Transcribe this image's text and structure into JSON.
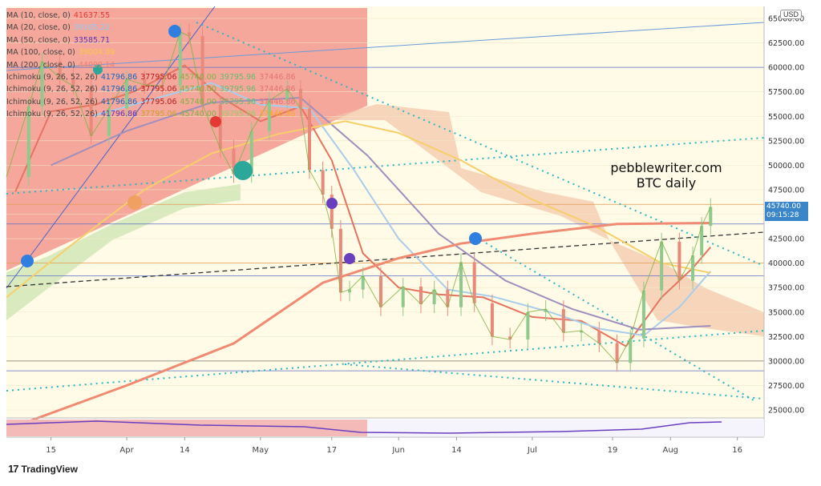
{
  "legend": [
    {
      "name": "MA (10, close, 0)",
      "values": [
        {
          "text": "41637.55",
          "color": "#e53935"
        }
      ]
    },
    {
      "name": "MA (20, close, 0)",
      "values": [
        {
          "text": "39165.22",
          "color": "#90caf9"
        }
      ]
    },
    {
      "name": "MA (50, close, 0)",
      "values": [
        {
          "text": "33585.71",
          "color": "#5e35b1"
        }
      ]
    },
    {
      "name": "MA (100, close, 0)",
      "values": [
        {
          "text": "39004.09",
          "color": "#f9c846"
        }
      ]
    },
    {
      "name": "MA (200, close, 0)",
      "values": [
        {
          "text": "44099.14",
          "color": "#f0806a"
        }
      ]
    },
    {
      "name": "Ichimoku (9, 26, 52, 26)",
      "values": [
        {
          "text": "41796.86",
          "color": "#1565c0"
        },
        {
          "text": "37795.06",
          "color": "#b71c1c"
        },
        {
          "text": "45740.00",
          "color": "#7cb342"
        },
        {
          "text": "39795.96",
          "color": "#66bb6a"
        },
        {
          "text": "37446.86",
          "color": "#e57373"
        }
      ]
    },
    {
      "name": "Ichimoku (9, 26, 52, 26)",
      "values": [
        {
          "text": "41796.86",
          "color": "#1565c0"
        },
        {
          "text": "37795.06",
          "color": "#b71c1c"
        },
        {
          "text": "45740.00",
          "color": "#7cb342"
        },
        {
          "text": "39795.96",
          "color": "#66bb6a"
        },
        {
          "text": "37446.86",
          "color": "#e57373"
        }
      ]
    },
    {
      "name": "Ichimoku (9, 26, 52, 26)",
      "values": [
        {
          "text": "41796.86",
          "color": "#1565c0"
        },
        {
          "text": "37795.06",
          "color": "#b71c1c"
        },
        {
          "text": "45740.00",
          "color": "#7cb342"
        },
        {
          "text": "39795.96",
          "color": "#66bb6a"
        },
        {
          "text": "37446.86",
          "color": "#e57373"
        }
      ]
    },
    {
      "name": "Ichimoku (9, 26, 52, 26)",
      "values": [
        {
          "text": "41796.86",
          "color": "#5e35b1"
        },
        {
          "text": "37795.06",
          "color": "#c9a227"
        },
        {
          "text": "45740.00",
          "color": "#7cb342"
        },
        {
          "text": "39795.96",
          "color": "#9ccc65"
        },
        {
          "text": "37446.86",
          "color": "#f9a825"
        }
      ]
    }
  ],
  "annotation": {
    "line1": "pebblewriter.com",
    "line2": "BTC daily"
  },
  "currency": "USD",
  "last_price": {
    "value": "45740.00",
    "time": "09:15:28"
  },
  "brand": {
    "logo": "17",
    "name": "TradingView"
  },
  "chart_data": {
    "type": "line",
    "title": "",
    "ylim": [
      24000,
      66000
    ],
    "y_ticks": [
      25000,
      27500,
      30000,
      32500,
      35000,
      37500,
      40000,
      42500,
      45000,
      47500,
      50000,
      52500,
      55000,
      57500,
      60000,
      62500,
      65000
    ],
    "y_tick_labels": [
      "25000.00",
      "27500.00",
      "30000.00",
      "32500.00",
      "35000.00",
      "37500.00",
      "40000.00",
      "42500.00",
      "45000.00",
      "47500.00",
      "50000.00",
      "52500.00",
      "55000.00",
      "57500.00",
      "60000.00",
      "62500.00",
      "65000.00"
    ],
    "x_ticks": [
      "15",
      "Apr",
      "14",
      "May",
      "17",
      "Jun",
      "14",
      "Jul",
      "19",
      "Aug",
      "16"
    ],
    "x_range": [
      "2021-03-05",
      "2021-08-22"
    ],
    "x_tick_dates": [
      "2021-03-15",
      "2021-04-01",
      "2021-04-14",
      "2021-05-01",
      "2021-05-17",
      "2021-06-01",
      "2021-06-14",
      "2021-07-01",
      "2021-07-19",
      "2021-08-01",
      "2021-08-16"
    ],
    "close_series": [
      [
        "2021-03-05",
        48800
      ],
      [
        "2021-03-10",
        56000
      ],
      [
        "2021-03-13",
        60600
      ],
      [
        "2021-03-17",
        58900
      ],
      [
        "2021-03-20",
        58100
      ],
      [
        "2021-03-24",
        53000
      ],
      [
        "2021-03-28",
        55800
      ],
      [
        "2021-04-01",
        58800
      ],
      [
        "2021-04-05",
        58200
      ],
      [
        "2021-04-09",
        58100
      ],
      [
        "2021-04-13",
        63600
      ],
      [
        "2021-04-15",
        63200
      ],
      [
        "2021-04-18",
        56200
      ],
      [
        "2021-04-22",
        51700
      ],
      [
        "2021-04-25",
        49100
      ],
      [
        "2021-04-29",
        53500
      ],
      [
        "2021-05-03",
        56600
      ],
      [
        "2021-05-07",
        57800
      ],
      [
        "2021-05-10",
        55800
      ],
      [
        "2021-05-12",
        49500
      ],
      [
        "2021-05-15",
        47000
      ],
      [
        "2021-05-17",
        43500
      ],
      [
        "2021-05-19",
        37000
      ],
      [
        "2021-05-21",
        37300
      ],
      [
        "2021-05-24",
        38700
      ],
      [
        "2021-05-28",
        35500
      ],
      [
        "2021-06-02",
        37600
      ],
      [
        "2021-06-06",
        35800
      ],
      [
        "2021-06-09",
        37300
      ],
      [
        "2021-06-12",
        35500
      ],
      [
        "2021-06-15",
        40100
      ],
      [
        "2021-06-18",
        35900
      ],
      [
        "2021-06-22",
        32500
      ],
      [
        "2021-06-26",
        32200
      ],
      [
        "2021-06-30",
        35000
      ],
      [
        "2021-07-04",
        35300
      ],
      [
        "2021-07-08",
        32900
      ],
      [
        "2021-07-12",
        33100
      ],
      [
        "2021-07-16",
        31800
      ],
      [
        "2021-07-20",
        29800
      ],
      [
        "2021-07-23",
        32300
      ],
      [
        "2021-07-26",
        37200
      ],
      [
        "2021-07-30",
        42200
      ],
      [
        "2021-08-03",
        38200
      ],
      [
        "2021-08-06",
        40800
      ],
      [
        "2021-08-08",
        43800
      ],
      [
        "2021-08-10",
        45740
      ]
    ],
    "series": [
      {
        "name": "MA (10, close, 0)",
        "color": "#e57360",
        "points": [
          [
            "2021-03-07",
            47300
          ],
          [
            "2021-03-15",
            55500
          ],
          [
            "2021-03-25",
            56200
          ],
          [
            "2021-04-03",
            57600
          ],
          [
            "2021-04-14",
            60200
          ],
          [
            "2021-04-22",
            57000
          ],
          [
            "2021-05-01",
            54500
          ],
          [
            "2021-05-10",
            56000
          ],
          [
            "2021-05-17",
            50500
          ],
          [
            "2021-05-24",
            41000
          ],
          [
            "2021-06-01",
            37500
          ],
          [
            "2021-06-10",
            36800
          ],
          [
            "2021-06-20",
            36500
          ],
          [
            "2021-07-01",
            34500
          ],
          [
            "2021-07-12",
            34100
          ],
          [
            "2021-07-22",
            31500
          ],
          [
            "2021-07-30",
            36500
          ],
          [
            "2021-08-06",
            39500
          ],
          [
            "2021-08-10",
            41637
          ]
        ]
      },
      {
        "name": "MA (20, close, 0)",
        "color": "#a9cdea",
        "points": [
          [
            "2021-03-24",
            55000
          ],
          [
            "2021-04-05",
            56500
          ],
          [
            "2021-04-20",
            58400
          ],
          [
            "2021-05-01",
            56200
          ],
          [
            "2021-05-12",
            55800
          ],
          [
            "2021-05-22",
            49500
          ],
          [
            "2021-06-01",
            42500
          ],
          [
            "2021-06-12",
            37300
          ],
          [
            "2021-06-22",
            36600
          ],
          [
            "2021-07-05",
            35000
          ],
          [
            "2021-07-16",
            33300
          ],
          [
            "2021-07-26",
            32600
          ],
          [
            "2021-08-03",
            35500
          ],
          [
            "2021-08-10",
            39165
          ]
        ]
      },
      {
        "name": "MA (50, close, 0)",
        "color": "#9e8fbe",
        "points": [
          [
            "2021-03-15",
            50000
          ],
          [
            "2021-04-01",
            53500
          ],
          [
            "2021-04-20",
            56400
          ],
          [
            "2021-05-10",
            56900
          ],
          [
            "2021-05-25",
            51000
          ],
          [
            "2021-06-10",
            43000
          ],
          [
            "2021-06-25",
            38200
          ],
          [
            "2021-07-10",
            35300
          ],
          [
            "2021-07-25",
            33200
          ],
          [
            "2021-08-10",
            33585
          ]
        ]
      },
      {
        "name": "MA (100, close, 0)",
        "color": "#f6cf6a",
        "points": [
          [
            "2021-03-05",
            36500
          ],
          [
            "2021-03-20",
            42000
          ],
          [
            "2021-04-05",
            47500
          ],
          [
            "2021-04-20",
            51200
          ],
          [
            "2021-05-05",
            53200
          ],
          [
            "2021-05-20",
            54500
          ],
          [
            "2021-06-01",
            53300
          ],
          [
            "2021-06-15",
            50500
          ],
          [
            "2021-07-01",
            46500
          ],
          [
            "2021-07-15",
            43800
          ],
          [
            "2021-07-30",
            40000
          ],
          [
            "2021-08-10",
            39004
          ]
        ]
      },
      {
        "name": "MA (200, close, 0)",
        "color": "#f08a72",
        "points": [
          [
            "2021-03-08",
            23500
          ],
          [
            "2021-04-01",
            27500
          ],
          [
            "2021-04-25",
            31800
          ],
          [
            "2021-05-15",
            38000
          ],
          [
            "2021-06-01",
            40500
          ],
          [
            "2021-06-15",
            42000
          ],
          [
            "2021-07-01",
            43000
          ],
          [
            "2021-07-20",
            44000
          ],
          [
            "2021-08-10",
            44099
          ]
        ]
      }
    ]
  }
}
